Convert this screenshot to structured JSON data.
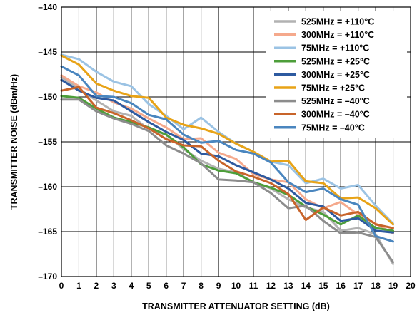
{
  "chart_data": {
    "type": "line",
    "title": "",
    "xlabel": "TRANSMITTER ATTENUATOR SETTING (dB)",
    "ylabel": "TRANSMITTER NOISE (dBm/Hz)",
    "xlim": [
      0,
      20
    ],
    "ylim": [
      -170,
      -140
    ],
    "x_ticks": [
      0,
      1,
      2,
      3,
      4,
      5,
      6,
      7,
      8,
      9,
      10,
      11,
      12,
      13,
      14,
      15,
      16,
      17,
      18,
      19,
      20
    ],
    "y_ticks": [
      -140,
      -145,
      -150,
      -155,
      -160,
      -165,
      -170
    ],
    "y_tick_labels": [
      "–140",
      "–145",
      "–150",
      "–155",
      "–160",
      "–165",
      "–170"
    ],
    "grid": true,
    "legend_position": "top-right",
    "x": [
      0,
      1,
      2,
      3,
      4,
      5,
      6,
      7,
      8,
      9,
      10,
      11,
      12,
      13,
      14,
      15,
      16,
      17,
      18,
      19
    ],
    "series": [
      {
        "name": "525MHz = +110°C",
        "color": "#b2b2b2",
        "values": [
          -147.8,
          -149.1,
          -150.4,
          -151.6,
          -152.1,
          -153.6,
          -154.2,
          -155.8,
          -157.1,
          -158.0,
          -158.4,
          -159.5,
          -160.2,
          -161.4,
          -162.3,
          -162.8,
          -164.9,
          -164.6,
          -165.3,
          -168.6
        ]
      },
      {
        "name": "300MHz = +110°C",
        "color": "#f5a98c",
        "values": [
          -147.6,
          -148.8,
          -149.5,
          -150.6,
          -151.3,
          -152.4,
          -153.4,
          -154.7,
          -154.6,
          -156.2,
          -156.9,
          -158.6,
          -159.2,
          -159.5,
          -161.4,
          -162.4,
          -161.7,
          -163.1,
          -164.1,
          -165.2
        ]
      },
      {
        "name": "75MHz = +110°C",
        "color": "#9bc3e4",
        "values": [
          -145.3,
          -145.8,
          -147.2,
          -148.3,
          -148.8,
          -150.8,
          -152.1,
          -153.6,
          -152.3,
          -153.9,
          -155.2,
          -156.1,
          -157.2,
          -157.6,
          -159.6,
          -159.1,
          -160.2,
          -159.8,
          -162.1,
          -164.1
        ]
      },
      {
        "name": "525MHz = +25°C",
        "color": "#4d9e3a",
        "values": [
          -149.9,
          -150.1,
          -151.3,
          -152.3,
          -152.8,
          -153.4,
          -154.2,
          -155.6,
          -157.5,
          -158.2,
          -158.5,
          -159.5,
          -160.1,
          -160.9,
          -162.2,
          -163.1,
          -164.2,
          -163.2,
          -164.6,
          -164.9
        ]
      },
      {
        "name": "300MHz = +25°C",
        "color": "#2d5aa0",
        "values": [
          -148.1,
          -149.3,
          -150.1,
          -150.4,
          -151.6,
          -152.8,
          -153.9,
          -154.8,
          -156.3,
          -156.6,
          -157.6,
          -158.4,
          -159.2,
          -160.2,
          -161.8,
          -162.2,
          -163.8,
          -163.5,
          -164.9,
          -165.1
        ]
      },
      {
        "name": "75MHz = +25°C",
        "color": "#e8a317",
        "values": [
          -145.4,
          -146.4,
          -148.5,
          -149.3,
          -149.9,
          -150.1,
          -152.3,
          -153.1,
          -153.5,
          -154.1,
          -155.2,
          -156.1,
          -157.2,
          -157.1,
          -159.4,
          -159.6,
          -161.3,
          -161.2,
          -162.4,
          -164.2
        ]
      },
      {
        "name": "525MHz = –40°C",
        "color": "#8c8c8c",
        "values": [
          -150.3,
          -150.3,
          -151.6,
          -152.4,
          -153.0,
          -153.8,
          -155.4,
          -156.3,
          -157.4,
          -159.2,
          -159.3,
          -159.5,
          -160.7,
          -162.4,
          -162.1,
          -163.8,
          -165.2,
          -165.1,
          -165.6,
          -168.4
        ]
      },
      {
        "name": "300MHz = –40°C",
        "color": "#c8642a",
        "values": [
          -149.3,
          -148.9,
          -151.2,
          -151.8,
          -152.6,
          -153.5,
          -154.7,
          -155.4,
          -155.5,
          -157.1,
          -158.3,
          -158.9,
          -159.6,
          -160.8,
          -163.7,
          -162.3,
          -163.2,
          -162.8,
          -164.2,
          -164.6
        ]
      },
      {
        "name": "75MHz = –40°C",
        "color": "#4a86bf",
        "values": [
          -146.6,
          -147.6,
          -149.9,
          -150.0,
          -150.7,
          -152.0,
          -152.5,
          -154.2,
          -155.1,
          -154.9,
          -155.9,
          -156.3,
          -157.3,
          -159.5,
          -160.6,
          -160.2,
          -161.4,
          -162.0,
          -165.5,
          -166.1
        ]
      }
    ]
  }
}
